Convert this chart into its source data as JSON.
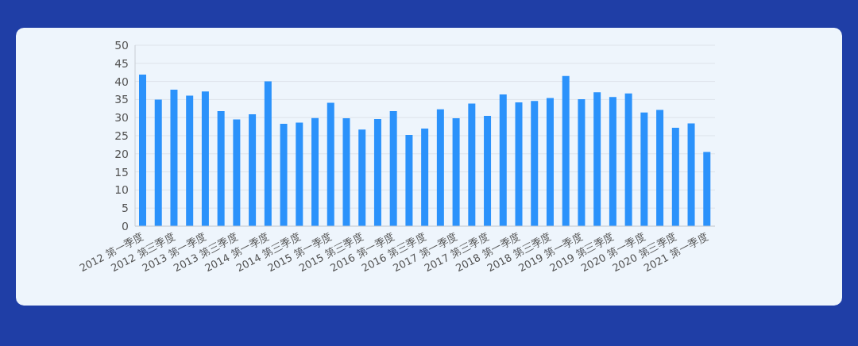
{
  "chart_data": {
    "type": "bar",
    "categories": [
      "2012 第一季度",
      null,
      "2012 第三季度",
      null,
      "2013 第一季度",
      null,
      "2013 第三季度",
      null,
      "2014 第一季度",
      null,
      "2014 第三季度",
      null,
      "2015 第一季度",
      null,
      "2015 第三季度",
      null,
      "2016 第一季度",
      null,
      "2016 第三季度",
      null,
      "2017 第一季度",
      null,
      "2017 第三季度",
      null,
      "2018 第一季度",
      null,
      "2018 第三季度",
      null,
      "2019 第一季度",
      null,
      "2019 第三季度",
      null,
      "2020 第一季度",
      null,
      "2020 第三季度",
      null,
      "2021 第一季度"
    ],
    "values": [
      41.9,
      35.0,
      37.7,
      36.1,
      37.2,
      31.8,
      29.5,
      30.9,
      40.0,
      28.3,
      28.6,
      29.9,
      34.1,
      29.8,
      26.7,
      29.6,
      31.8,
      25.2,
      27.0,
      32.3,
      29.8,
      33.9,
      30.5,
      36.4,
      34.2,
      34.6,
      35.4,
      41.5,
      35.1,
      37.0,
      35.7,
      36.7,
      31.4,
      32.1,
      27.2,
      28.4,
      20.5
    ],
    "color": "#2b92fb",
    "ylim": [
      0,
      50
    ],
    "yticks": [
      0,
      5,
      10,
      15,
      20,
      25,
      30,
      35,
      40,
      45,
      50
    ],
    "grid": "y"
  }
}
